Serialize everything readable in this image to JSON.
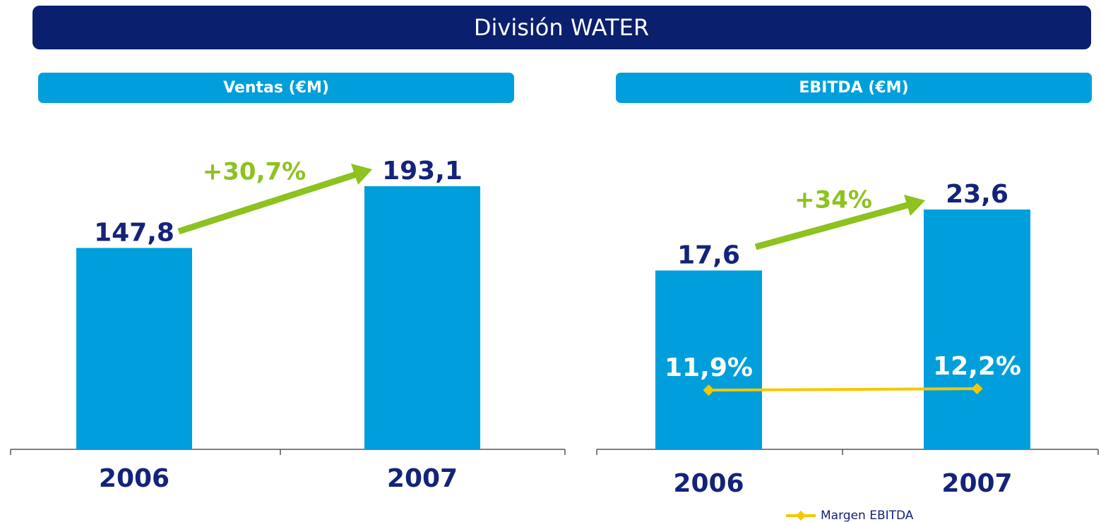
{
  "header": {
    "title": "División WATER"
  },
  "chart_data": [
    {
      "type": "bar",
      "title": "Ventas (€M)",
      "categories": [
        "2006",
        "2007"
      ],
      "values": [
        147.8,
        193.1
      ],
      "value_labels": [
        "147,8",
        "193,1"
      ],
      "color": "#009fdb",
      "annotations": [
        "+30,7%"
      ]
    },
    {
      "type": "bar",
      "title": "EBITDA (€M)",
      "categories": [
        "2006",
        "2007"
      ],
      "values": [
        17.6,
        23.6
      ],
      "value_labels": [
        "17,6",
        "23,6"
      ],
      "color": "#009fdb",
      "annotations": [
        "+34%"
      ],
      "series": [
        {
          "name": "Margen EBITDA",
          "color": "#f5c800",
          "values": [
            11.9,
            12.2
          ],
          "value_labels": [
            "11,9%",
            "12,2%"
          ],
          "axis": "y2"
        }
      ]
    }
  ]
}
